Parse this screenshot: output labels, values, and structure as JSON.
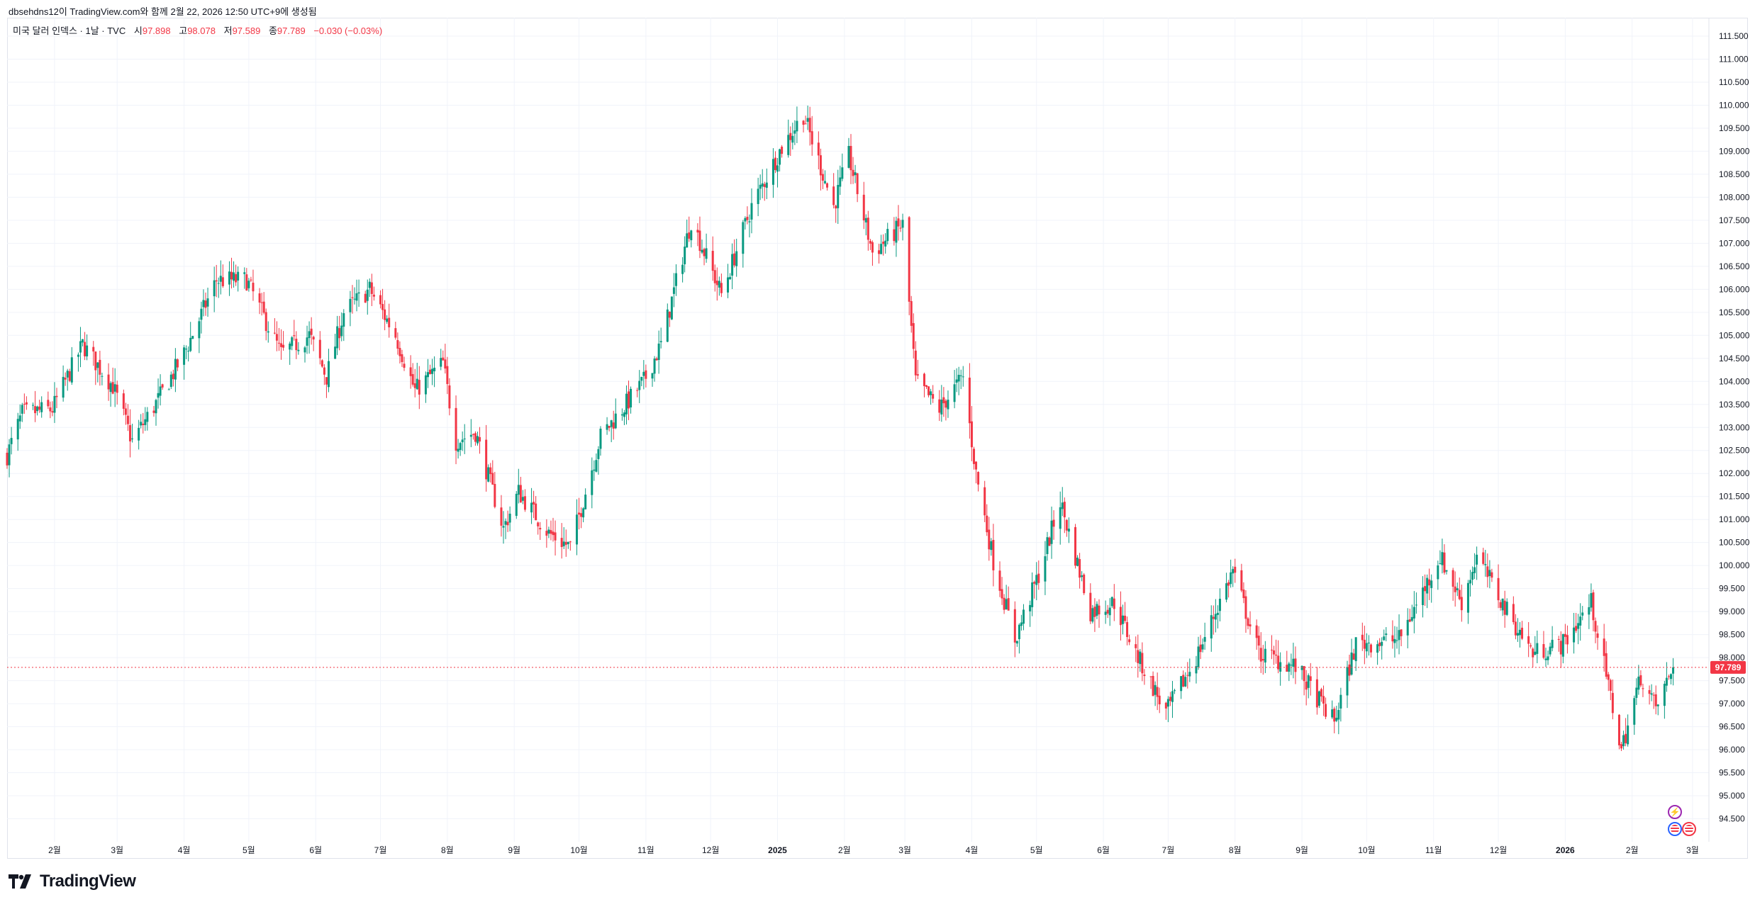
{
  "header": {
    "attribution": "dbsehdns12이 TradingView.com와 함께 2월 22, 2026 12:50 UTC+9에 생성됨"
  },
  "legend": {
    "symbol": "미국 달러 인덱스 · 1날 · TVC",
    "open_label": "시",
    "open": "97.898",
    "high_label": "고",
    "high": "98.078",
    "low_label": "저",
    "low": "97.589",
    "close_label": "종",
    "close": "97.789",
    "change": "−0.030 (−0.03%)"
  },
  "colors": {
    "up": "#089981",
    "down": "#f23645",
    "grid": "#f0f3fa",
    "axis_text": "#131722",
    "price_line": "#f23645"
  },
  "footer": {
    "brand": "TradingView"
  },
  "icons": [
    "lightning-icon",
    "us-flag-icon",
    "us-flag-icon",
    "tradingview-logo-icon"
  ],
  "chart_data": {
    "type": "candlestick",
    "ylim": [
      94.0,
      111.9
    ],
    "y_ticks": [
      "94.500",
      "95.000",
      "95.500",
      "96.000",
      "96.500",
      "97.000",
      "97.500",
      "98.000",
      "98.500",
      "99.000",
      "99.500",
      "100.000",
      "100.500",
      "101.000",
      "101.500",
      "102.000",
      "102.500",
      "103.000",
      "103.500",
      "104.000",
      "104.500",
      "105.000",
      "105.500",
      "106.000",
      "106.500",
      "107.000",
      "107.500",
      "108.000",
      "108.500",
      "109.000",
      "109.500",
      "110.000",
      "110.500",
      "111.000",
      "111.500"
    ],
    "last_price": "97.789",
    "x_ticks": [
      {
        "label": "2월",
        "date": "2024-02-01"
      },
      {
        "label": "3월",
        "date": "2024-03-01"
      },
      {
        "label": "4월",
        "date": "2024-04-01"
      },
      {
        "label": "5월",
        "date": "2024-05-01"
      },
      {
        "label": "6월",
        "date": "2024-06-01"
      },
      {
        "label": "7월",
        "date": "2024-07-01"
      },
      {
        "label": "8월",
        "date": "2024-08-01"
      },
      {
        "label": "9월",
        "date": "2024-09-01"
      },
      {
        "label": "10월",
        "date": "2024-10-01"
      },
      {
        "label": "11월",
        "date": "2024-11-01"
      },
      {
        "label": "12월",
        "date": "2024-12-01"
      },
      {
        "label": "2025",
        "date": "2025-01-01",
        "bold": true
      },
      {
        "label": "2월",
        "date": "2025-02-01"
      },
      {
        "label": "3월",
        "date": "2025-03-01"
      },
      {
        "label": "4월",
        "date": "2025-04-01"
      },
      {
        "label": "5월",
        "date": "2025-05-01"
      },
      {
        "label": "6월",
        "date": "2025-06-01"
      },
      {
        "label": "7월",
        "date": "2025-07-01"
      },
      {
        "label": "8월",
        "date": "2025-08-01"
      },
      {
        "label": "9월",
        "date": "2025-09-01"
      },
      {
        "label": "10월",
        "date": "2025-10-01"
      },
      {
        "label": "11월",
        "date": "2025-11-01"
      },
      {
        "label": "12월",
        "date": "2025-12-01"
      },
      {
        "label": "2026",
        "date": "2026-01-01",
        "bold": true
      },
      {
        "label": "2월",
        "date": "2026-02-01"
      },
      {
        "label": "3월",
        "date": "2026-03-01"
      }
    ],
    "series": [
      {
        "name": "미국 달러 인덱스",
        "approx_daily_closes_from": "2024-01-10",
        "anchor_closes": [
          {
            "date": "2024-01-10",
            "close": 102.4
          },
          {
            "date": "2024-01-17",
            "close": 103.3
          },
          {
            "date": "2024-01-31",
            "close": 103.4
          },
          {
            "date": "2024-02-08",
            "close": 104.2
          },
          {
            "date": "2024-02-14",
            "close": 104.8
          },
          {
            "date": "2024-02-28",
            "close": 103.9
          },
          {
            "date": "2024-03-08",
            "close": 102.7
          },
          {
            "date": "2024-03-20",
            "close": 103.6
          },
          {
            "date": "2024-04-01",
            "close": 104.6
          },
          {
            "date": "2024-04-16",
            "close": 106.2
          },
          {
            "date": "2024-04-30",
            "close": 106.2
          },
          {
            "date": "2024-05-16",
            "close": 104.6
          },
          {
            "date": "2024-05-29",
            "close": 105.0
          },
          {
            "date": "2024-06-06",
            "close": 104.1
          },
          {
            "date": "2024-06-14",
            "close": 105.5
          },
          {
            "date": "2024-06-26",
            "close": 106.0
          },
          {
            "date": "2024-07-08",
            "close": 105.0
          },
          {
            "date": "2024-07-17",
            "close": 103.8
          },
          {
            "date": "2024-07-30",
            "close": 104.4
          },
          {
            "date": "2024-08-05",
            "close": 102.7
          },
          {
            "date": "2024-08-14",
            "close": 102.9
          },
          {
            "date": "2024-08-27",
            "close": 100.8
          },
          {
            "date": "2024-09-03",
            "close": 101.6
          },
          {
            "date": "2024-09-17",
            "close": 100.7
          },
          {
            "date": "2024-09-27",
            "close": 100.4
          },
          {
            "date": "2024-10-11",
            "close": 102.8
          },
          {
            "date": "2024-10-31",
            "close": 104.0
          },
          {
            "date": "2024-11-08",
            "close": 104.8
          },
          {
            "date": "2024-11-22",
            "close": 107.5
          },
          {
            "date": "2024-12-06",
            "close": 105.9
          },
          {
            "date": "2024-12-20",
            "close": 107.8
          },
          {
            "date": "2025-01-02",
            "close": 109.0
          },
          {
            "date": "2025-01-13",
            "close": 109.8
          },
          {
            "date": "2025-01-27",
            "close": 107.8
          },
          {
            "date": "2025-02-03",
            "close": 108.9
          },
          {
            "date": "2025-02-14",
            "close": 106.8
          },
          {
            "date": "2025-02-28",
            "close": 107.4
          },
          {
            "date": "2025-03-06",
            "close": 104.0
          },
          {
            "date": "2025-03-17",
            "close": 103.4
          },
          {
            "date": "2025-03-28",
            "close": 104.1
          },
          {
            "date": "2025-04-03",
            "close": 102.0
          },
          {
            "date": "2025-04-11",
            "close": 100.1
          },
          {
            "date": "2025-04-21",
            "close": 98.4
          },
          {
            "date": "2025-05-02",
            "close": 99.8
          },
          {
            "date": "2025-05-12",
            "close": 101.4
          },
          {
            "date": "2025-05-26",
            "close": 99.0
          },
          {
            "date": "2025-06-06",
            "close": 99.2
          },
          {
            "date": "2025-06-16",
            "close": 98.1
          },
          {
            "date": "2025-06-30",
            "close": 96.8
          },
          {
            "date": "2025-07-14",
            "close": 98.0
          },
          {
            "date": "2025-07-31",
            "close": 99.9
          },
          {
            "date": "2025-08-12",
            "close": 98.1
          },
          {
            "date": "2025-08-29",
            "close": 97.8
          },
          {
            "date": "2025-09-16",
            "close": 96.6
          },
          {
            "date": "2025-09-26",
            "close": 98.3
          },
          {
            "date": "2025-10-16",
            "close": 98.4
          },
          {
            "date": "2025-11-04",
            "close": 100.2
          },
          {
            "date": "2025-11-14",
            "close": 99.2
          },
          {
            "date": "2025-11-21",
            "close": 100.2
          },
          {
            "date": "2025-12-05",
            "close": 99.0
          },
          {
            "date": "2025-12-17",
            "close": 98.1
          },
          {
            "date": "2025-12-31",
            "close": 98.3
          },
          {
            "date": "2026-01-13",
            "close": 99.2
          },
          {
            "date": "2026-01-27",
            "close": 96.0
          },
          {
            "date": "2026-02-05",
            "close": 97.6
          },
          {
            "date": "2026-02-12",
            "close": 96.9
          },
          {
            "date": "2026-02-20",
            "close": 97.789
          }
        ]
      }
    ]
  }
}
